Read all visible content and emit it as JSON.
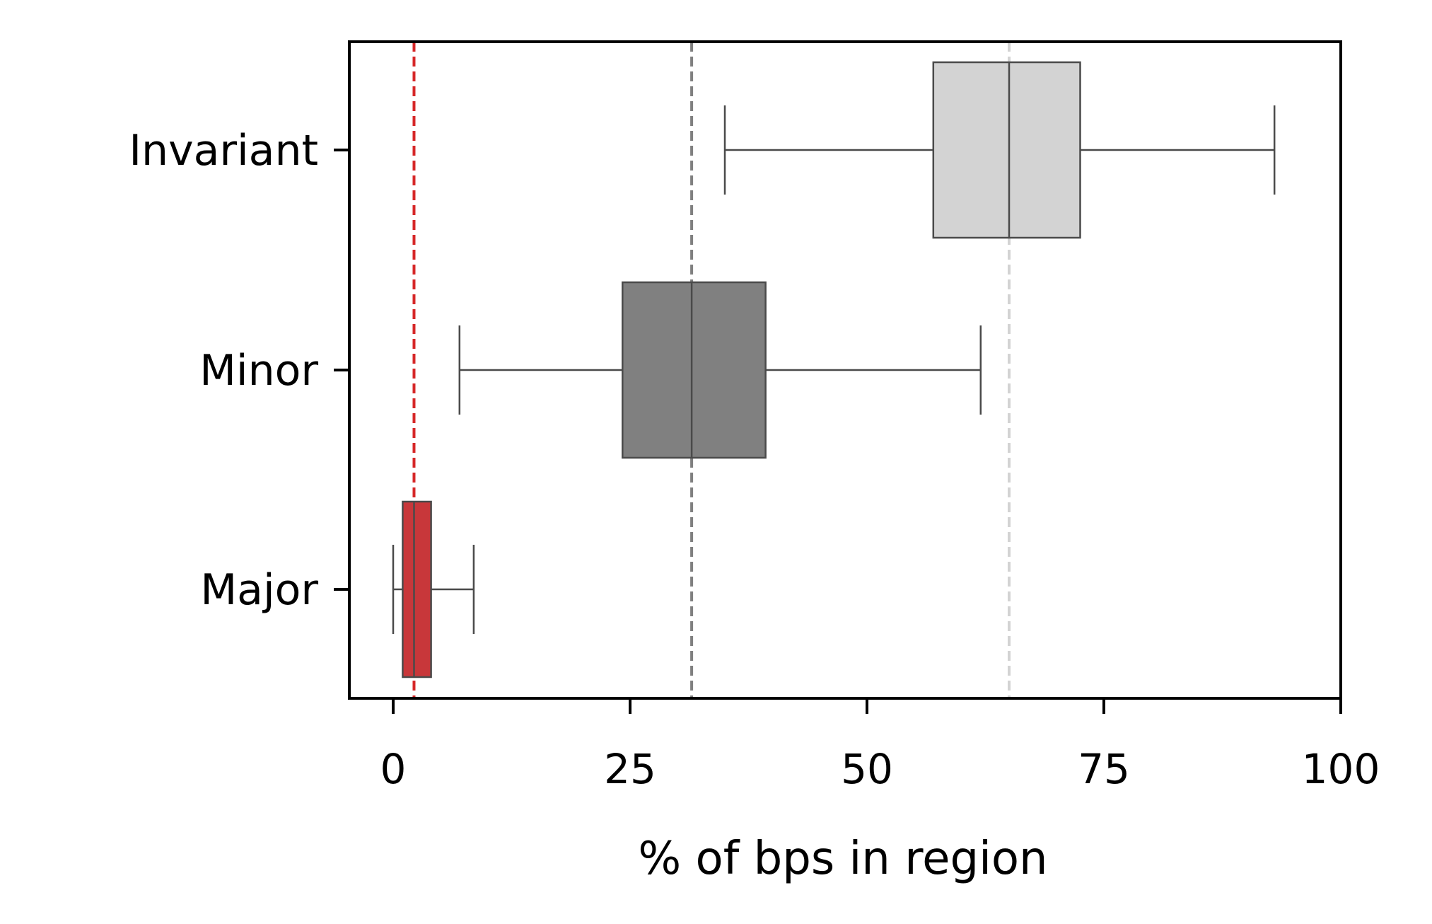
{
  "chart_data": {
    "type": "boxplot",
    "orientation": "horizontal",
    "title": "",
    "xlabel": "% of bps in region",
    "ylabel": "",
    "xlim": [
      -4.7,
      100
    ],
    "xticks": [
      0,
      25,
      50,
      75,
      100
    ],
    "xtick_labels": [
      "0",
      "25",
      "50",
      "75",
      "100"
    ],
    "grid": false,
    "categories": [
      "Invariant",
      "Minor",
      "Major"
    ],
    "boxes": [
      {
        "category": "Invariant",
        "whisker_low": 35,
        "q1": 57,
        "median": 65,
        "q3": 72.5,
        "whisker_high": 93,
        "color": "#d3d3d3"
      },
      {
        "category": "Minor",
        "whisker_low": 7,
        "q1": 24.2,
        "median": 31.5,
        "q3": 39.3,
        "whisker_high": 62,
        "color": "#808080"
      },
      {
        "category": "Major",
        "whisker_low": 0,
        "q1": 1,
        "median": 2.2,
        "q3": 4,
        "whisker_high": 8.5,
        "color": "#c8373a"
      }
    ],
    "reference_lines": [
      {
        "x": 65,
        "color": "#d3d3d3"
      },
      {
        "x": 31.5,
        "color": "#808080"
      },
      {
        "x": 2.2,
        "color": "#d62728"
      }
    ],
    "line_color": "#4a4a4a"
  }
}
